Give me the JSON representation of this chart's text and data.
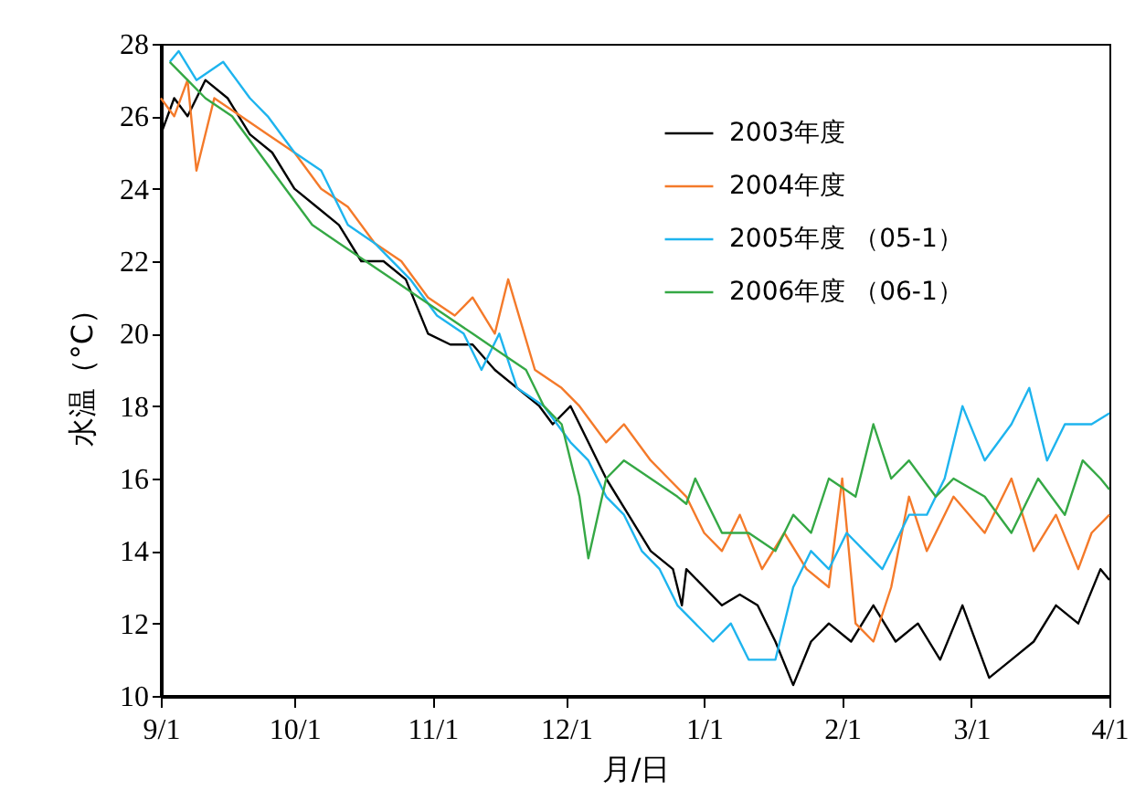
{
  "chart_data": {
    "type": "line",
    "xlabel": "月/日",
    "ylabel": "水温（°C）",
    "xlim": [
      "2003-09-01",
      "2004-04-01"
    ],
    "xticks": [
      {
        "value": "2003-09-01",
        "label": "9/1"
      },
      {
        "value": "2003-10-01",
        "label": "10/1"
      },
      {
        "value": "2003-11-01",
        "label": "11/1"
      },
      {
        "value": "2003-12-01",
        "label": "12/1"
      },
      {
        "value": "2004-01-01",
        "label": "1/1"
      },
      {
        "value": "2004-02-01",
        "label": "2/1"
      },
      {
        "value": "2004-03-01",
        "label": "3/1"
      },
      {
        "value": "2004-04-01",
        "label": "4/1"
      }
    ],
    "ylim": [
      10,
      28
    ],
    "yticks": [
      10,
      12,
      14,
      16,
      18,
      20,
      22,
      24,
      26,
      28
    ],
    "legend": "top right",
    "line_style": "solid",
    "series": [
      {
        "name": "2003年度",
        "color": "#000000",
        "x": [
          "2003-09-01",
          "2003-09-04",
          "2003-09-07",
          "2003-09-11",
          "2003-09-16",
          "2003-09-21",
          "2003-09-26",
          "2003-10-01",
          "2003-10-06",
          "2003-10-11",
          "2003-10-16",
          "2003-10-21",
          "2003-10-26",
          "2003-10-31",
          "2003-11-05",
          "2003-11-10",
          "2003-11-15",
          "2003-11-20",
          "2003-11-25",
          "2003-11-28",
          "2003-12-02",
          "2003-12-06",
          "2003-12-10",
          "2003-12-15",
          "2003-12-20",
          "2003-12-25",
          "2003-12-27",
          "2003-12-28",
          "2004-01-01",
          "2004-01-05",
          "2004-01-09",
          "2004-01-13",
          "2004-01-17",
          "2004-01-21",
          "2004-01-25",
          "2004-01-29",
          "2004-02-03",
          "2004-02-08",
          "2004-02-13",
          "2004-02-18",
          "2004-02-23",
          "2004-02-28",
          "2004-03-05",
          "2004-03-10",
          "2004-03-15",
          "2004-03-20",
          "2004-03-25",
          "2004-03-30",
          "2004-04-01"
        ],
        "values": [
          25.5,
          26.5,
          26,
          27,
          26.5,
          25.5,
          25,
          24,
          23.5,
          23,
          22,
          22,
          21.5,
          20,
          19.7,
          19.7,
          19,
          18.5,
          18,
          17.5,
          18,
          17,
          16,
          15,
          14,
          13.5,
          12.5,
          13.5,
          13,
          12.5,
          12.8,
          12.5,
          11.5,
          10.3,
          11.5,
          12,
          11.5,
          12.5,
          11.5,
          12,
          11,
          12.5,
          10.5,
          11,
          11.5,
          12.5,
          12,
          13.5,
          13.2
        ]
      },
      {
        "name": "2004年度",
        "color": "#f47a2a",
        "x": [
          "2003-09-01",
          "2003-09-04",
          "2003-09-07",
          "2003-09-09",
          "2003-09-13",
          "2003-09-19",
          "2003-09-25",
          "2003-10-01",
          "2003-10-07",
          "2003-10-13",
          "2003-10-19",
          "2003-10-25",
          "2003-10-31",
          "2003-11-06",
          "2003-11-10",
          "2003-11-15",
          "2003-11-18",
          "2003-11-24",
          "2003-11-30",
          "2003-12-04",
          "2003-12-10",
          "2003-12-14",
          "2003-12-20",
          "2003-12-24",
          "2003-12-28",
          "2004-01-01",
          "2004-01-05",
          "2004-01-09",
          "2004-01-14",
          "2004-01-19",
          "2004-01-24",
          "2004-01-29",
          "2004-02-01",
          "2004-02-04",
          "2004-02-08",
          "2004-02-12",
          "2004-02-16",
          "2004-02-20",
          "2004-02-26",
          "2004-03-04",
          "2004-03-10",
          "2004-03-15",
          "2004-03-20",
          "2004-03-25",
          "2004-03-28",
          "2004-04-01"
        ],
        "values": [
          26.5,
          26,
          27,
          24.5,
          26.5,
          26,
          25.5,
          25,
          24,
          23.5,
          22.5,
          22,
          21,
          20.5,
          21,
          20,
          21.5,
          19,
          18.5,
          18,
          17,
          17.5,
          16.5,
          16,
          15.5,
          14.5,
          14,
          15,
          13.5,
          14.5,
          13.5,
          13,
          16,
          12,
          11.5,
          13,
          15.5,
          14,
          15.5,
          14.5,
          16,
          14,
          15,
          13.5,
          14.5,
          15
        ]
      },
      {
        "name": "2005年度 （05-1）",
        "color": "#1eb4ee",
        "x": [
          "2003-09-03",
          "2003-09-05",
          "2003-09-09",
          "2003-09-15",
          "2003-09-21",
          "2003-09-25",
          "2003-10-01",
          "2003-10-07",
          "2003-10-13",
          "2003-10-19",
          "2003-10-27",
          "2003-11-02",
          "2003-11-08",
          "2003-11-12",
          "2003-11-16",
          "2003-11-20",
          "2003-11-26",
          "2003-12-02",
          "2003-12-06",
          "2003-12-10",
          "2003-12-14",
          "2003-12-18",
          "2003-12-22",
          "2003-12-26",
          "2003-12-30",
          "2004-01-03",
          "2004-01-07",
          "2004-01-11",
          "2004-01-17",
          "2004-01-21",
          "2004-01-25",
          "2004-01-29",
          "2004-02-02",
          "2004-02-06",
          "2004-02-10",
          "2004-02-16",
          "2004-02-20",
          "2004-02-24",
          "2004-02-28",
          "2004-03-04",
          "2004-03-10",
          "2004-03-14",
          "2004-03-18",
          "2004-03-22",
          "2004-03-28",
          "2004-04-01"
        ],
        "values": [
          27.5,
          27.8,
          27,
          27.5,
          26.5,
          26,
          25,
          24.5,
          23,
          22.5,
          21.5,
          20.5,
          20,
          19,
          20,
          18.5,
          18,
          17,
          16.5,
          15.5,
          15,
          14,
          13.5,
          12.5,
          12,
          11.5,
          12,
          11,
          11,
          13,
          14,
          13.5,
          14.5,
          14,
          13.5,
          15,
          15,
          16,
          18,
          16.5,
          17.5,
          18.5,
          16.5,
          17.5,
          17.5,
          17.8
        ]
      },
      {
        "name": "2006年度 （06-1）",
        "color": "#35a845",
        "x": [
          "2003-09-03",
          "2003-09-07",
          "2003-09-11",
          "2003-09-17",
          "2003-09-23",
          "2003-09-29",
          "2003-10-05",
          "2003-10-11",
          "2003-10-17",
          "2003-10-23",
          "2003-10-29",
          "2003-11-04",
          "2003-11-10",
          "2003-11-16",
          "2003-11-22",
          "2003-11-26",
          "2003-11-30",
          "2003-12-04",
          "2003-12-06",
          "2003-12-10",
          "2003-12-14",
          "2003-12-20",
          "2003-12-26",
          "2003-12-28",
          "2003-12-30",
          "2004-01-05",
          "2004-01-11",
          "2004-01-17",
          "2004-01-21",
          "2004-01-25",
          "2004-01-29",
          "2004-02-04",
          "2004-02-08",
          "2004-02-12",
          "2004-02-16",
          "2004-02-22",
          "2004-02-26",
          "2004-03-04",
          "2004-03-10",
          "2004-03-16",
          "2004-03-22",
          "2004-03-26",
          "2004-03-30",
          "2004-04-01"
        ],
        "values": [
          27.5,
          27,
          26.5,
          26,
          25,
          24,
          23,
          22.5,
          22,
          21.5,
          21,
          20.5,
          20,
          19.5,
          19,
          18,
          17.5,
          15.5,
          13.8,
          16,
          16.5,
          16,
          15.5,
          15.3,
          16,
          14.5,
          14.5,
          14,
          15,
          14.5,
          16,
          15.5,
          17.5,
          16,
          16.5,
          15.5,
          16,
          15.5,
          14.5,
          16,
          15,
          16.5,
          16,
          15.7
        ]
      }
    ]
  }
}
